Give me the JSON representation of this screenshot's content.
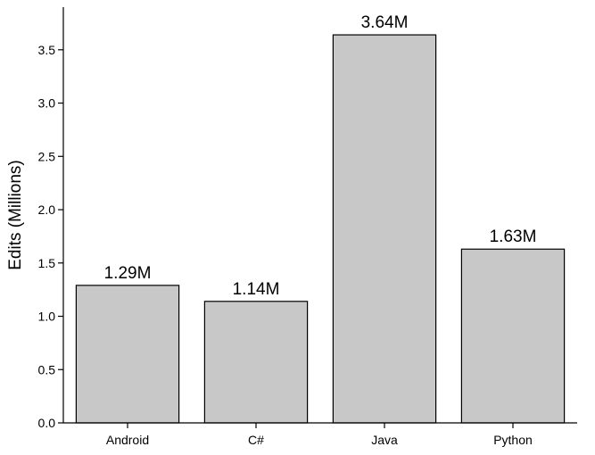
{
  "chart_data": {
    "type": "bar",
    "categories": [
      "Android",
      "C#",
      "Java",
      "Python"
    ],
    "values": [
      1.29,
      1.14,
      3.64,
      1.63
    ],
    "data_labels": [
      "1.29M",
      "1.14M",
      "3.64M",
      "1.63M"
    ],
    "ylabel": "Edits (Millions)",
    "ylim": [
      0,
      3.9
    ],
    "yticks": [
      0.0,
      0.5,
      1.0,
      1.5,
      2.0,
      2.5,
      3.0,
      3.5
    ],
    "ytick_labels": [
      "0.0",
      "0.5",
      "1.0",
      "1.5",
      "2.0",
      "2.5",
      "3.0",
      "3.5"
    ],
    "grid": false,
    "bar_color": "#c8c8c8",
    "edge_color": "#000000"
  }
}
